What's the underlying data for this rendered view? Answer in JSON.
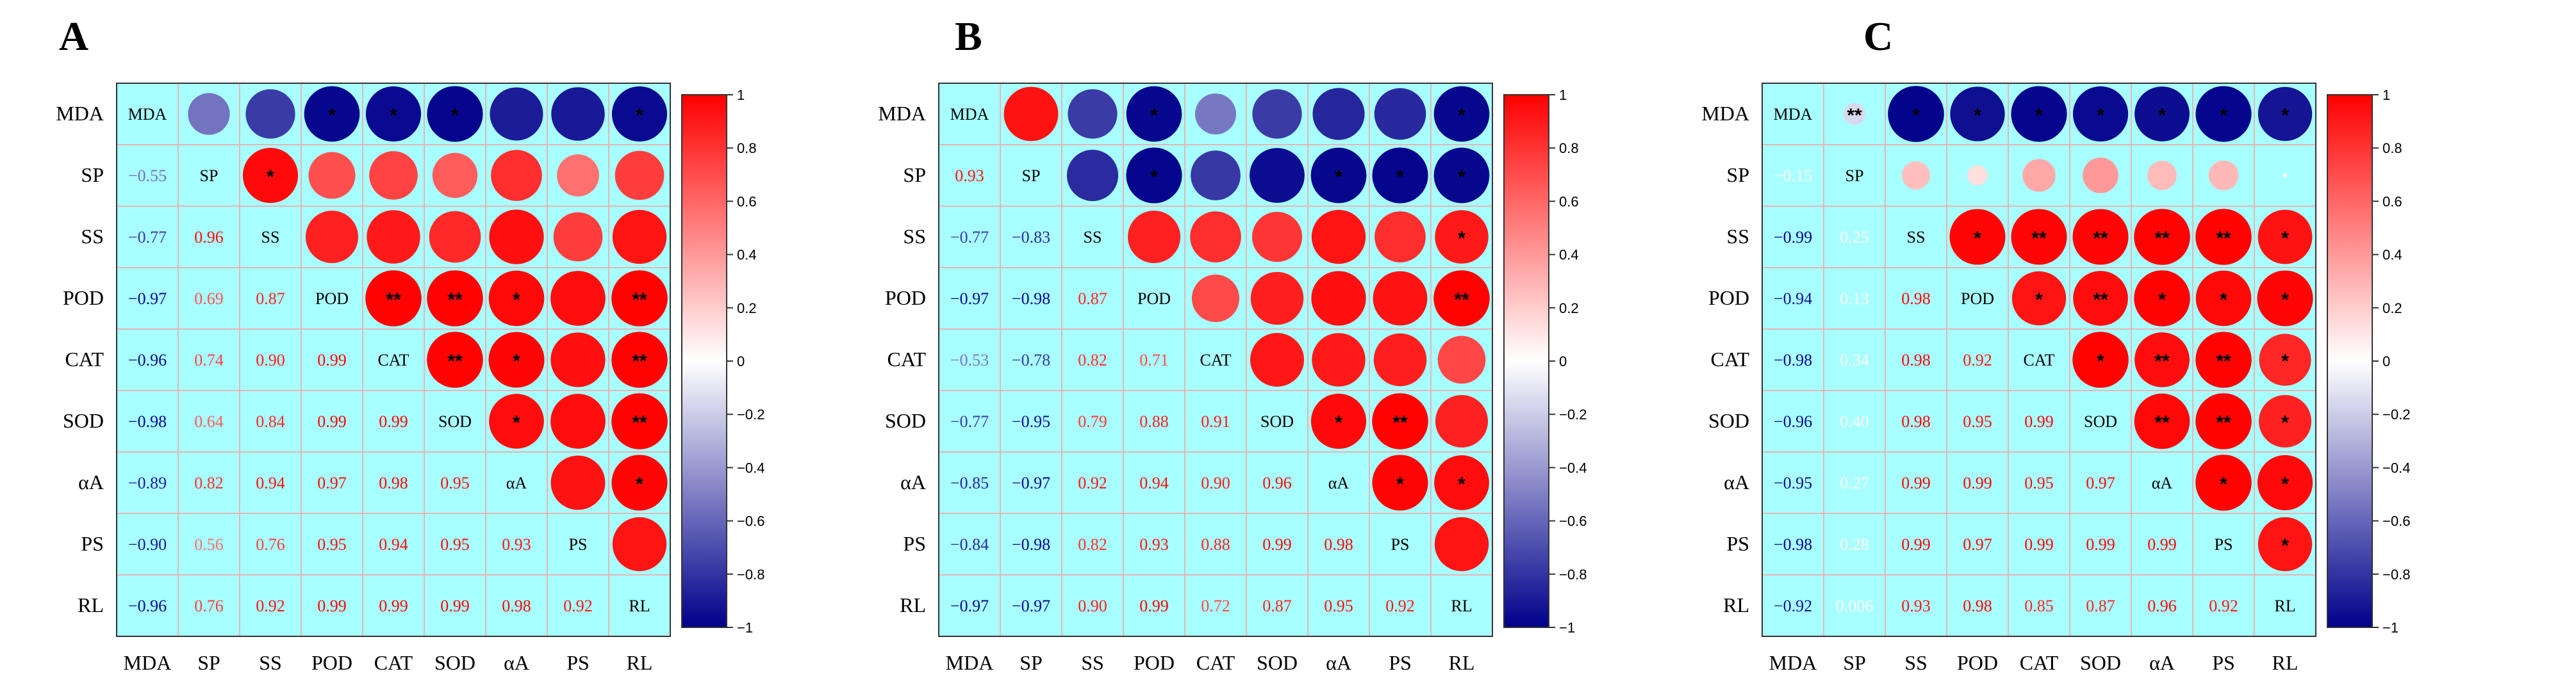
{
  "chart_data": [
    {
      "panel": "A",
      "type": "heatmap",
      "variables": [
        "MDA",
        "SP",
        "SS",
        "POD",
        "CAT",
        "SOD",
        "αA",
        "PS",
        "RL"
      ],
      "lower": [
        [
          "-0.55"
        ],
        [
          "-0.77",
          "0.96"
        ],
        [
          "-0.97",
          "0.69",
          "0.87"
        ],
        [
          "-0.96",
          "0.74",
          "0.90",
          "0.99"
        ],
        [
          "-0.98",
          "0.64",
          "0.84",
          "0.99",
          "0.99"
        ],
        [
          "-0.89",
          "0.82",
          "0.94",
          "0.97",
          "0.98",
          "0.95"
        ],
        [
          "-0.90",
          "0.56",
          "0.76",
          "0.95",
          "0.94",
          "0.95",
          "0.93"
        ],
        [
          "-0.96",
          "0.76",
          "0.92",
          "0.99",
          "0.99",
          "0.99",
          "0.98",
          "0.92"
        ]
      ],
      "upper_sig": [
        [
          "",
          "",
          "*",
          "*",
          "*",
          "",
          "",
          "*"
        ],
        [
          "*",
          "",
          "",
          "",
          "",
          "",
          "",
          ""
        ],
        [
          "",
          "",
          "",
          "",
          "",
          "",
          ""
        ],
        [
          "**",
          "**",
          "*",
          "",
          "**"
        ],
        [
          "**",
          "*",
          "",
          "**"
        ],
        [
          "*",
          "",
          "**"
        ],
        [
          "",
          "*"
        ],
        [
          ""
        ]
      ],
      "colorbar_ticks": [
        "1",
        "0.8",
        "0.6",
        "0.4",
        "0.2",
        "0",
        "−0.2",
        "−0.4",
        "−0.6",
        "−0.8",
        "−1"
      ]
    },
    {
      "panel": "B",
      "type": "heatmap",
      "variables": [
        "MDA",
        "SP",
        "SS",
        "POD",
        "CAT",
        "SOD",
        "αA",
        "PS",
        "RL"
      ],
      "lower": [
        [
          "0.93"
        ],
        [
          "-0.77",
          "-0.83"
        ],
        [
          "-0.97",
          "-0.98",
          "0.87"
        ],
        [
          "-0.53",
          "-0.78",
          "0.82",
          "0.71"
        ],
        [
          "-0.77",
          "-0.95",
          "0.79",
          "0.88",
          "0.91"
        ],
        [
          "-0.85",
          "-0.97",
          "0.92",
          "0.94",
          "0.90",
          "0.96"
        ],
        [
          "-0.84",
          "-0.98",
          "0.82",
          "0.93",
          "0.88",
          "0.99",
          "0.98"
        ],
        [
          "-0.97",
          "-0.97",
          "0.90",
          "0.99",
          "0.72",
          "0.87",
          "0.95",
          "0.92"
        ]
      ],
      "upper_sig": [
        [
          "",
          "",
          "*",
          "",
          "",
          "",
          "",
          "*"
        ],
        [
          "",
          "*",
          "",
          "",
          "*",
          "*",
          "*"
        ],
        [
          "",
          "",
          "",
          "",
          "",
          "*"
        ],
        [
          "",
          "",
          "",
          "",
          "**"
        ],
        [
          "",
          "",
          "",
          ""
        ],
        [
          "*",
          "**",
          ""
        ],
        [
          "*",
          "*"
        ],
        [
          ""
        ]
      ],
      "colorbar_ticks": [
        "1",
        "0.8",
        "0.6",
        "0.4",
        "0.2",
        "0",
        "−0.2",
        "−0.4",
        "−0.6",
        "−0.8",
        "−1"
      ]
    },
    {
      "panel": "C",
      "type": "heatmap",
      "variables": [
        "MDA",
        "SP",
        "SS",
        "POD",
        "CAT",
        "SOD",
        "αA",
        "PS",
        "RL"
      ],
      "lower": [
        [
          "-0.15"
        ],
        [
          "-0.99",
          "0.25"
        ],
        [
          "-0.94",
          "0.13",
          "0.98"
        ],
        [
          "-0.98",
          "0.34",
          "0.98",
          "0.92"
        ],
        [
          "-0.96",
          "0.40",
          "0.98",
          "0.95",
          "0.99"
        ],
        [
          "-0.95",
          "0.27",
          "0.99",
          "0.99",
          "0.95",
          "0.97"
        ],
        [
          "-0.98",
          "0.28",
          "0.99",
          "0.97",
          "0.99",
          "0.99",
          "0.99"
        ],
        [
          "-0.92",
          "0.006",
          "0.93",
          "0.98",
          "0.85",
          "0.87",
          "0.96",
          "0.92"
        ]
      ],
      "upper_sig": [
        [
          "**",
          "*",
          "*",
          "*",
          "*",
          "*",
          "*",
          "*"
        ],
        [
          "",
          "",
          "",
          "",
          "",
          "",
          ""
        ],
        [
          "*",
          "**",
          "**",
          "**",
          "**",
          "*"
        ],
        [
          "*",
          "**",
          "*",
          "*",
          "*"
        ],
        [
          "*",
          "**",
          "**",
          "*"
        ],
        [
          "**",
          "**",
          "*"
        ],
        [
          "*",
          "*"
        ],
        [
          "*"
        ]
      ],
      "colorbar_ticks": [
        "1",
        "0.8",
        "0.6",
        "0.4",
        "0.2",
        "0",
        "−0.2",
        "−0.4",
        "−0.6",
        "−0.8",
        "−1"
      ]
    }
  ]
}
